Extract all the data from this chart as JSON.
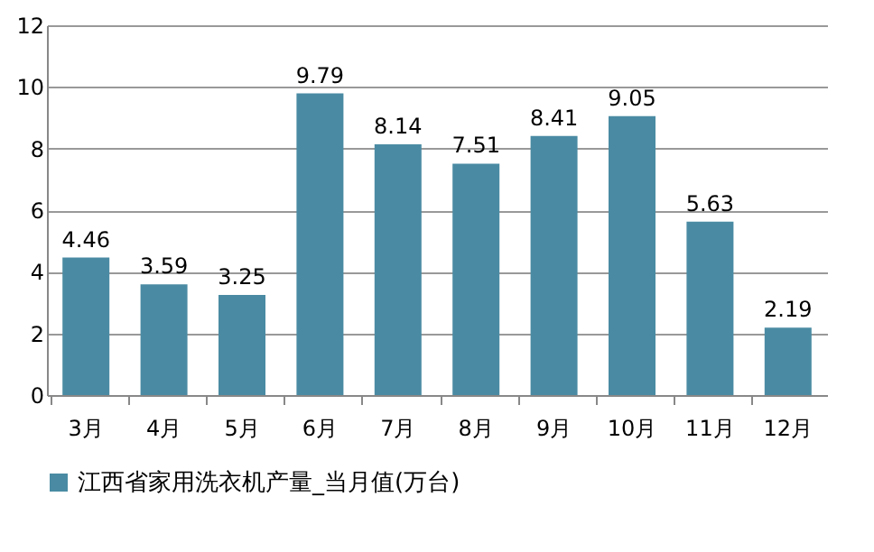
{
  "chart_data": {
    "type": "bar",
    "categories": [
      "3月",
      "4月",
      "5月",
      "6月",
      "7月",
      "8月",
      "9月",
      "10月",
      "11月",
      "12月"
    ],
    "series": [
      {
        "name": "江西省家用洗衣机产量_当月值(万台)",
        "color": "#4a8ba3",
        "values": [
          4.46,
          3.59,
          3.25,
          9.79,
          8.14,
          7.51,
          8.41,
          9.05,
          5.63,
          2.19
        ]
      }
    ],
    "ylim": [
      0,
      12
    ],
    "yticks": [
      0,
      2,
      4,
      6,
      8,
      10,
      12
    ],
    "grid": "y",
    "legend": "bottom",
    "data_labels": true
  }
}
